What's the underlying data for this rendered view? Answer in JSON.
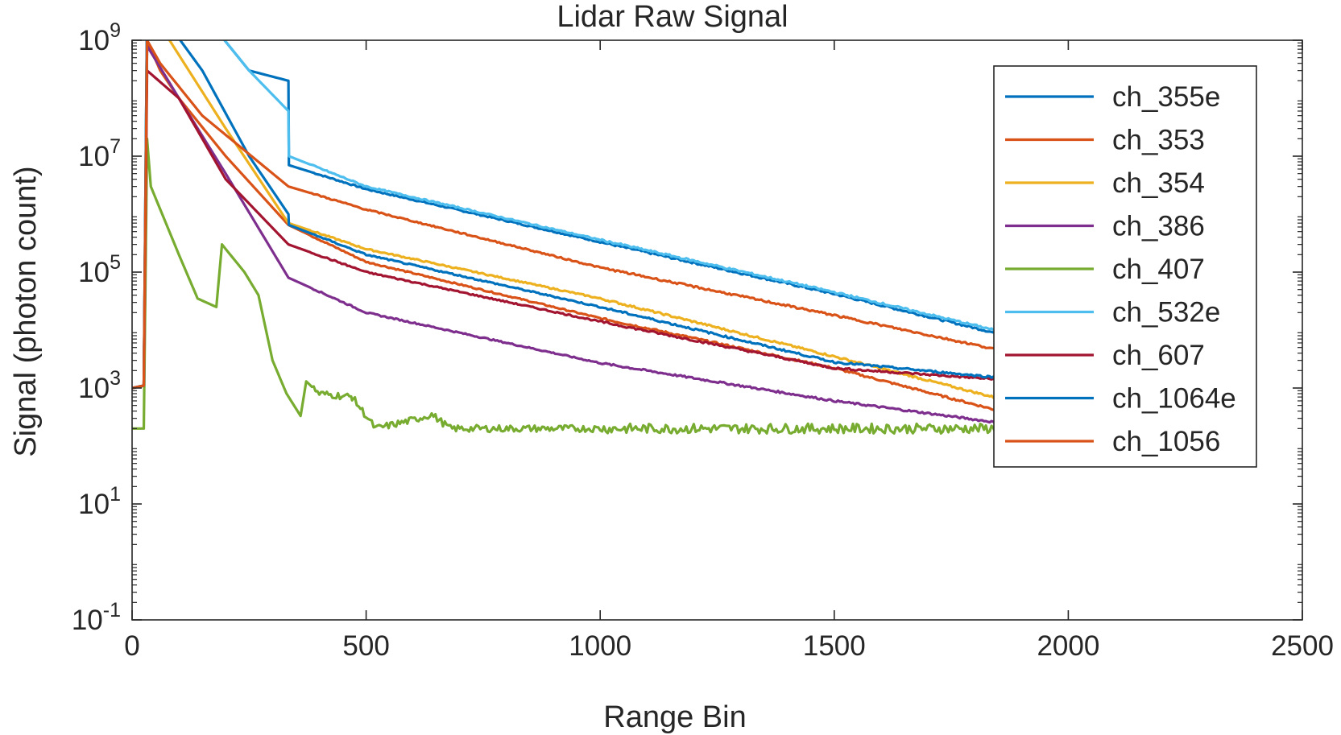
{
  "chart_data": {
    "type": "line",
    "title": "Lidar Raw Signal",
    "xlabel": "Range Bin",
    "ylabel": "Signal (photon count)",
    "xlim": [
      0,
      2500
    ],
    "ylim": [
      0.1,
      1000000000
    ],
    "yscale": "log",
    "grid": false,
    "legend_position": "top-right",
    "xticks": [
      0,
      500,
      1000,
      1500,
      2000,
      2500
    ],
    "xtick_labels": [
      "0",
      "500",
      "1000",
      "1500",
      "2000",
      "2500"
    ],
    "yticks": [
      0.1,
      10,
      1000,
      100000,
      10000000,
      1000000000
    ],
    "ytick_labels": [
      {
        "base": "10",
        "exp": "-1"
      },
      {
        "base": "10",
        "exp": "1"
      },
      {
        "base": "10",
        "exp": "3"
      },
      {
        "base": "10",
        "exp": "5"
      },
      {
        "base": "10",
        "exp": "7"
      },
      {
        "base": "10",
        "exp": "9"
      }
    ],
    "series": [
      {
        "name": "ch_355e",
        "color": "#0072BD",
        "points": [
          [
            0,
            1000
          ],
          [
            25,
            1100
          ],
          [
            32,
            3000000000
          ],
          [
            100,
            3000000000
          ],
          [
            180,
            1500000000
          ],
          [
            250,
            300000000
          ],
          [
            334,
            200000000
          ],
          [
            335,
            7000000
          ],
          [
            500,
            2700000
          ],
          [
            1000,
            330000
          ],
          [
            1500,
            42000
          ],
          [
            1855,
            8500
          ]
        ]
      },
      {
        "name": "ch_353",
        "color": "#D95319",
        "points": [
          [
            0,
            1000
          ],
          [
            25,
            1100
          ],
          [
            32,
            1000000000
          ],
          [
            60,
            300000000
          ],
          [
            100,
            100000000
          ],
          [
            200,
            10000000
          ],
          [
            334,
            650000
          ],
          [
            500,
            150000
          ],
          [
            1000,
            16000
          ],
          [
            1500,
            2200
          ],
          [
            1855,
            400
          ]
        ]
      },
      {
        "name": "ch_354",
        "color": "#EDB120",
        "points": [
          [
            0,
            1000
          ],
          [
            25,
            1100
          ],
          [
            32,
            3000000000
          ],
          [
            80,
            1000000000
          ],
          [
            200,
            30000000
          ],
          [
            334,
            700000
          ],
          [
            500,
            250000
          ],
          [
            1000,
            35000
          ],
          [
            1500,
            3500
          ],
          [
            1855,
            650
          ]
        ]
      },
      {
        "name": "ch_386",
        "color": "#7E2F8E",
        "points": [
          [
            0,
            1000
          ],
          [
            25,
            1100
          ],
          [
            32,
            800000000
          ],
          [
            100,
            100000000
          ],
          [
            200,
            5000000
          ],
          [
            334,
            80000
          ],
          [
            500,
            20000
          ],
          [
            1000,
            2700
          ],
          [
            1500,
            600
          ],
          [
            1855,
            250
          ]
        ]
      },
      {
        "name": "ch_407",
        "color": "#77AC30",
        "points": [
          [
            0,
            200
          ],
          [
            25,
            200
          ],
          [
            32,
            20000000
          ],
          [
            40,
            3000000
          ],
          [
            100,
            200000
          ],
          [
            140,
            35000
          ],
          [
            180,
            25000
          ],
          [
            192,
            300000
          ],
          [
            200,
            250000
          ],
          [
            240,
            100000
          ],
          [
            270,
            40000
          ],
          [
            300,
            3000
          ],
          [
            330,
            800
          ],
          [
            360,
            330
          ],
          [
            372,
            1300
          ],
          [
            400,
            800
          ],
          [
            470,
            700
          ],
          [
            520,
            200
          ],
          [
            600,
            280
          ],
          [
            640,
            350
          ],
          [
            680,
            200
          ],
          [
            1000,
            200
          ],
          [
            1500,
            200
          ],
          [
            1855,
            200
          ]
        ]
      },
      {
        "name": "ch_532e",
        "color": "#4DBEEE",
        "points": [
          [
            0,
            1000
          ],
          [
            25,
            1100
          ],
          [
            32,
            3000000000
          ],
          [
            150,
            3000000000
          ],
          [
            250,
            300000000
          ],
          [
            334,
            60000000
          ],
          [
            335,
            10000000
          ],
          [
            500,
            3000000
          ],
          [
            1000,
            360000
          ],
          [
            1500,
            45000
          ],
          [
            1855,
            9500
          ]
        ]
      },
      {
        "name": "ch_607",
        "color": "#A2142F",
        "points": [
          [
            0,
            1000
          ],
          [
            25,
            1100
          ],
          [
            32,
            300000000
          ],
          [
            100,
            100000000
          ],
          [
            200,
            4000000
          ],
          [
            334,
            300000
          ],
          [
            500,
            100000
          ],
          [
            1000,
            14000
          ],
          [
            1500,
            2200
          ],
          [
            1855,
            1400
          ]
        ]
      },
      {
        "name": "ch_1064e",
        "color": "#0072BD",
        "points": [
          [
            0,
            1000
          ],
          [
            25,
            1100
          ],
          [
            32,
            3000000000
          ],
          [
            60,
            3000000000
          ],
          [
            150,
            300000000
          ],
          [
            250,
            10000000
          ],
          [
            334,
            1000000
          ],
          [
            335,
            650000
          ],
          [
            500,
            200000
          ],
          [
            1000,
            25000
          ],
          [
            1500,
            2800
          ],
          [
            1855,
            1500
          ]
        ]
      },
      {
        "name": "ch_1056",
        "color": "#D95319",
        "points": [
          [
            0,
            1000
          ],
          [
            25,
            1100
          ],
          [
            32,
            1000000000
          ],
          [
            60,
            400000000
          ],
          [
            150,
            50000000
          ],
          [
            334,
            3000000
          ],
          [
            500,
            1200000
          ],
          [
            1000,
            120000
          ],
          [
            1500,
            18000
          ],
          [
            1855,
            4500
          ]
        ]
      }
    ]
  }
}
